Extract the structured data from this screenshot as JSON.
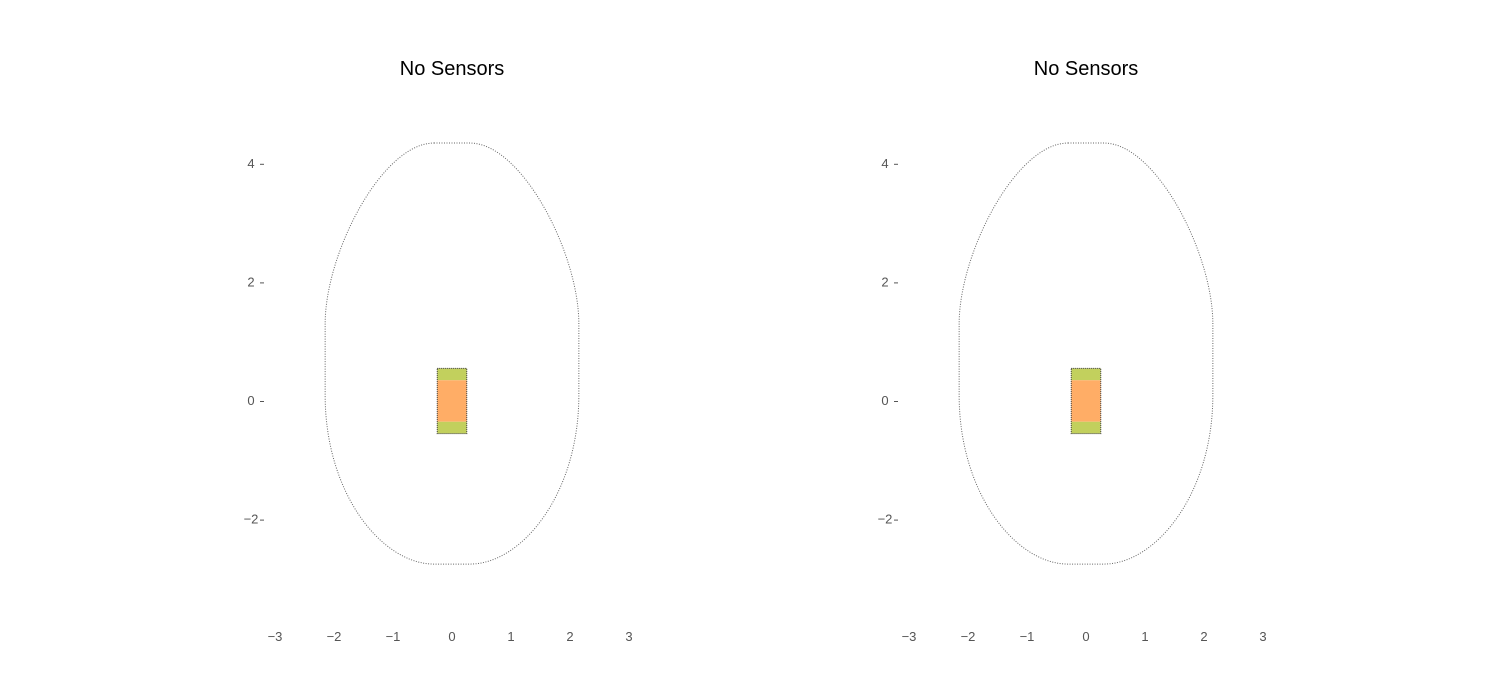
{
  "chart_data": [
    {
      "type": "scatter",
      "title": "No Sensors",
      "xlabel": "",
      "ylabel": "",
      "xlim": [
        -3,
        3
      ],
      "ylim": [
        -3.6,
        4.6
      ],
      "x_ticks": [
        "−3",
        "−2",
        "−1",
        "0",
        "1",
        "2",
        "3"
      ],
      "y_ticks": [
        "4",
        "2",
        "0",
        "−2"
      ],
      "grid": false,
      "shapes": [
        {
          "kind": "boundary",
          "style": "dotted",
          "x_extent": [
            -2.15,
            2.15
          ],
          "y_extent": [
            -2.75,
            4.35
          ]
        },
        {
          "kind": "vehicle-end-zone",
          "color": "#c2d05d",
          "x": [
            -0.25,
            0.25
          ],
          "y": [
            0.35,
            0.55
          ]
        },
        {
          "kind": "vehicle-body",
          "color": "#ffad66",
          "x": [
            -0.25,
            0.25
          ],
          "y": [
            -0.35,
            0.35
          ]
        },
        {
          "kind": "vehicle-end-zone",
          "color": "#c2d05d",
          "x": [
            -0.25,
            0.25
          ],
          "y": [
            -0.55,
            -0.35
          ]
        }
      ]
    },
    {
      "type": "scatter",
      "title": "No Sensors",
      "xlabel": "",
      "ylabel": "",
      "xlim": [
        -3,
        3
      ],
      "ylim": [
        -3.6,
        4.6
      ],
      "x_ticks": [
        "−3",
        "−2",
        "−1",
        "0",
        "1",
        "2",
        "3"
      ],
      "y_ticks": [
        "4",
        "2",
        "0",
        "−2"
      ],
      "grid": false,
      "shapes": [
        {
          "kind": "boundary",
          "style": "dotted",
          "x_extent": [
            -2.15,
            2.15
          ],
          "y_extent": [
            -2.75,
            4.35
          ]
        },
        {
          "kind": "vehicle-end-zone",
          "color": "#c2d05d",
          "x": [
            -0.25,
            0.25
          ],
          "y": [
            0.35,
            0.55
          ]
        },
        {
          "kind": "vehicle-body",
          "color": "#ffad66",
          "x": [
            -0.25,
            0.25
          ],
          "y": [
            -0.35,
            0.35
          ]
        },
        {
          "kind": "vehicle-end-zone",
          "color": "#c2d05d",
          "x": [
            -0.25,
            0.25
          ],
          "y": [
            -0.55,
            -0.35
          ]
        }
      ]
    }
  ]
}
